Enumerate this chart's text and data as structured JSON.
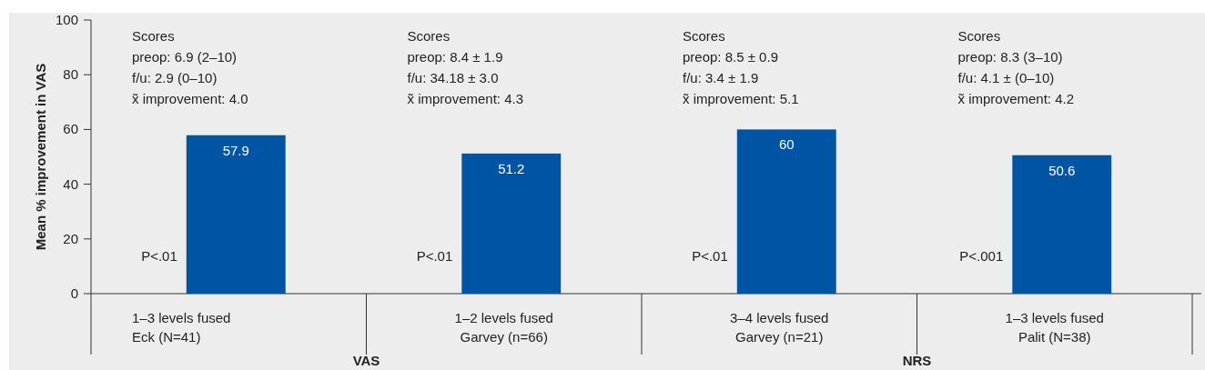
{
  "chart_data": {
    "type": "bar",
    "ylabel": "Mean % improvement in VAS",
    "categories": [
      "1–3 levels fused\nEck (N=41)",
      "1–2 levels fused\nGarvey (n=66)",
      "3–4 levels fused\nGarvey (n=21)",
      "1–3 levels fused\nPalit (N=38)"
    ],
    "values": [
      57.9,
      51.2,
      60,
      50.6
    ],
    "color": "#0054a4",
    "data_labels": true,
    "ylim": [
      0,
      100
    ],
    "yticks": [
      0,
      20,
      40,
      60,
      80,
      100
    ],
    "grid": false,
    "annotations": [
      "Scores\npreop: 6.9 (2–10)\nf/u: 2.9 (0–10)\nx̃ improvement: 4.0",
      "Scores\npreop: 8.4 ± 1.9\nf/u: 34.18 ± 3.0\nx̃ improvement: 4.3",
      "Scores\npreop: 8.5 ± 0.9\nf/u: 3.4 ± 1.9\nx̃ improvement: 5.1",
      "Scores\npreop: 8.3 (3–10)\nf/u: 4.1 ± (0–10)\nx̃ improvement: 4.2",
      "P<.01",
      "P<.01",
      "P<.01",
      "P<.001",
      "VAS",
      "NRS"
    ]
  }
}
